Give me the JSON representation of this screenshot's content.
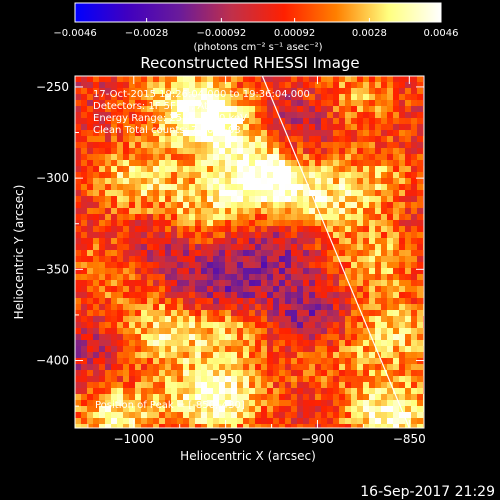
{
  "chart_data": {
    "type": "heatmap",
    "title": "Reconstructed RHESSI Image",
    "xlabel": "Heliocentric X (arcsec)",
    "ylabel": "Heliocentric Y (arcsec)",
    "xlim": [
      -1032,
      -842
    ],
    "ylim": [
      -437,
      -244
    ],
    "x_ticks": [
      -1000,
      -950,
      -900,
      -850
    ],
    "y_ticks": [
      -250,
      -300,
      -350,
      -400
    ],
    "colorbar": {
      "range": [
        -0.0046,
        0.0046
      ],
      "ticks": [
        -0.0046,
        -0.0028,
        -0.00092,
        0.00092,
        0.0028,
        0.0046
      ],
      "tick_labels": [
        "−0.0046",
        "−0.0028",
        "−0.00092",
        "0.00092",
        "0.0028",
        "0.0046"
      ],
      "units_label": "(photons cm⁻² s⁻¹ asec⁻²)",
      "colormap": [
        "#0000ff",
        "#4000c0",
        "#6a1b9a",
        "#c0304a",
        "#ff2000",
        "#ff8000",
        "#ffff80",
        "#ffffff"
      ]
    },
    "info_lines": [
      "17-Oct-2015 19:26:04.000 to 19:36:04.000",
      "Detectors: 1F 5F 7F, Att 0",
      "Energy Range: 25.0 – 50.0 keV",
      "Clean    Total counts: 7.66E+03"
    ],
    "peak_label": "Position of Peak = [-850,-430]",
    "limb_line": {
      "x": [
        -930,
        -850
      ],
      "y": [
        -244,
        -437
      ]
    },
    "bright_sources": [
      {
        "x": -955,
        "y": -270,
        "v": 0.85
      },
      {
        "x": -930,
        "y": -300,
        "v": 1.0
      },
      {
        "x": -1000,
        "y": -300,
        "v": 0.6
      },
      {
        "x": -965,
        "y": -320,
        "v": 0.55
      },
      {
        "x": -900,
        "y": -315,
        "v": 0.55
      },
      {
        "x": -870,
        "y": -300,
        "v": 0.45
      },
      {
        "x": -985,
        "y": -385,
        "v": 0.65
      },
      {
        "x": -945,
        "y": -380,
        "v": 0.55
      },
      {
        "x": -900,
        "y": -395,
        "v": 0.45
      },
      {
        "x": -860,
        "y": -385,
        "v": 0.6
      },
      {
        "x": -1015,
        "y": -350,
        "v": 0.4
      },
      {
        "x": -955,
        "y": -420,
        "v": 0.9
      },
      {
        "x": -1010,
        "y": -430,
        "v": 0.7
      },
      {
        "x": -860,
        "y": -430,
        "v": 0.85
      },
      {
        "x": -870,
        "y": -345,
        "v": 0.5
      },
      {
        "x": -975,
        "y": -255,
        "v": 0.55
      },
      {
        "x": -880,
        "y": -255,
        "v": 0.45
      }
    ],
    "dark_sources": [
      {
        "x": -950,
        "y": -360,
        "v": -0.55
      },
      {
        "x": -905,
        "y": -380,
        "v": -0.6
      },
      {
        "x": -920,
        "y": -335,
        "v": -0.35
      },
      {
        "x": -985,
        "y": -335,
        "v": -0.3
      },
      {
        "x": -910,
        "y": -270,
        "v": -0.3
      },
      {
        "x": -1020,
        "y": -395,
        "v": -0.25
      }
    ]
  },
  "footer": {
    "timestamp": "16-Sep-2017 21:29"
  }
}
